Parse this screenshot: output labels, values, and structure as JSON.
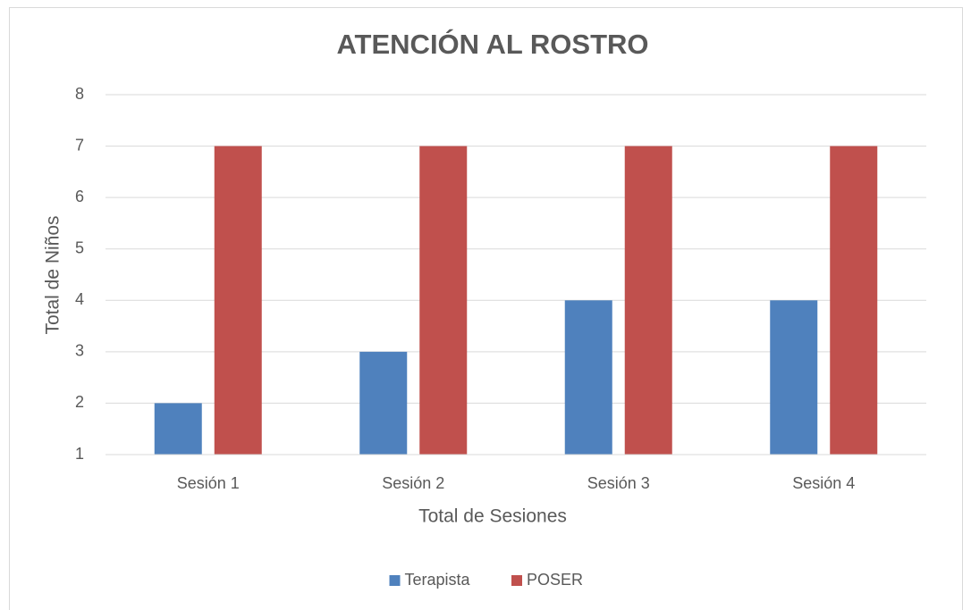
{
  "chart_data": {
    "type": "bar",
    "title": "ATENCIÓN AL ROSTRO",
    "x_label": "Total de Sesiones",
    "y_label": "Total de Niños",
    "categories": [
      "Sesión 1",
      "Sesión 2",
      "Sesión 3",
      "Sesión 4"
    ],
    "series": [
      {
        "name": "Terapista",
        "color": "#4f81bd",
        "values": [
          2,
          3,
          4,
          4
        ]
      },
      {
        "name": "POSER",
        "color": "#c0504d",
        "values": [
          7,
          7,
          7,
          7
        ]
      }
    ],
    "ylim": [
      1,
      8
    ],
    "yticks": [
      1,
      2,
      3,
      4,
      5,
      6,
      7,
      8
    ],
    "grid": true,
    "legend": "bottom"
  }
}
